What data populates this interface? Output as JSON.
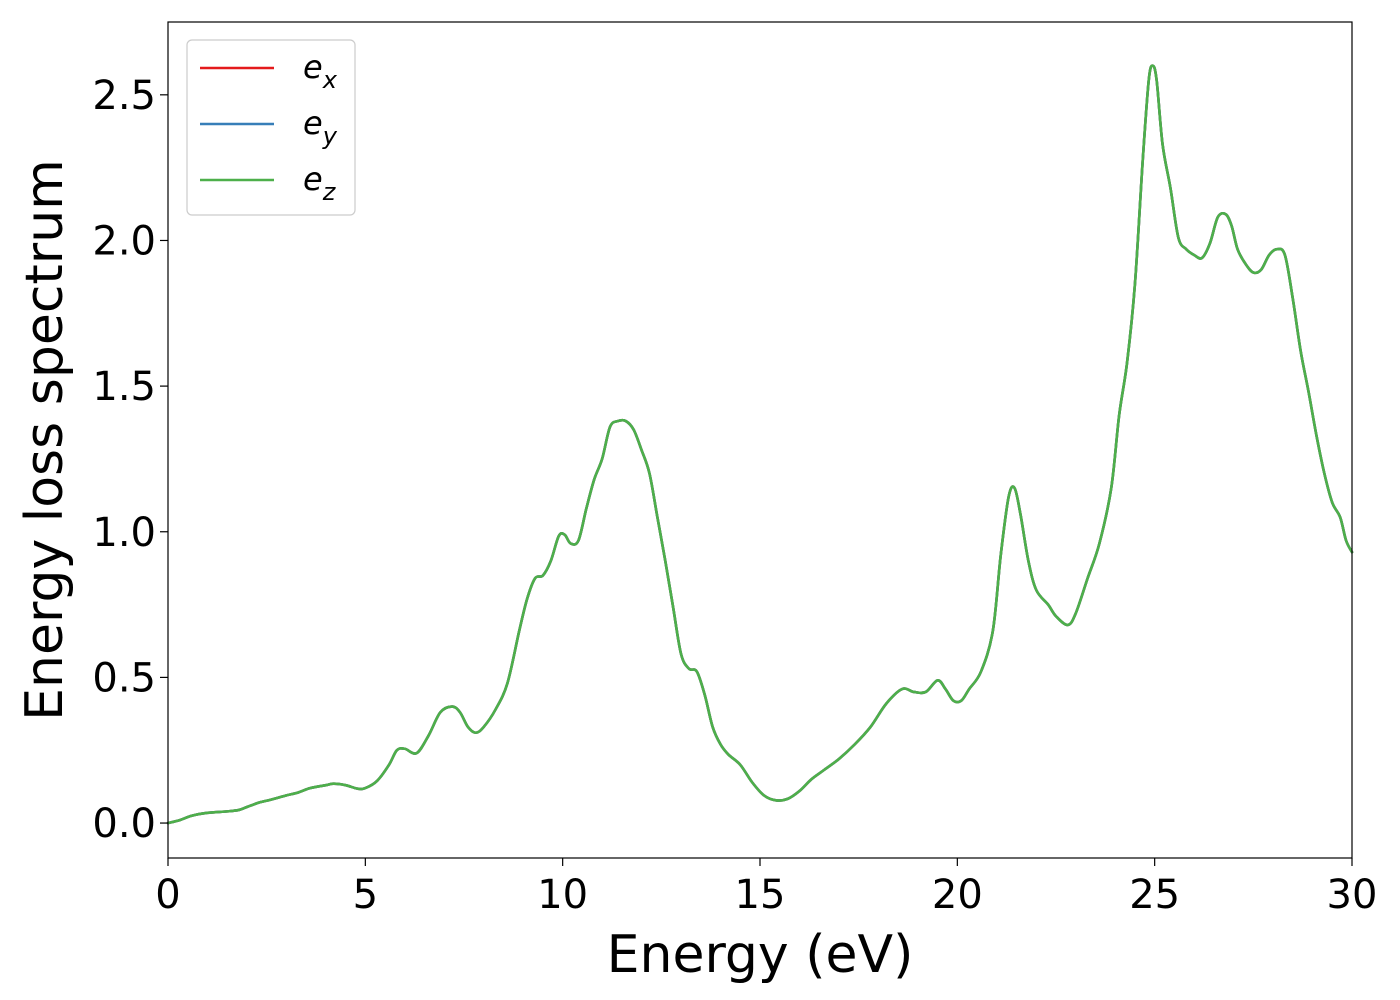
{
  "chart_data": {
    "type": "line",
    "title": "",
    "xlabel": "Energy (eV)",
    "ylabel": "Energy loss spectrum",
    "xlim": [
      0,
      30
    ],
    "ylim": [
      -0.12,
      2.75
    ],
    "xticks": [
      0,
      5,
      10,
      15,
      20,
      25,
      30
    ],
    "xtick_labels": [
      "0",
      "5",
      "10",
      "15",
      "20",
      "25",
      "30"
    ],
    "yticks": [
      0.0,
      0.5,
      1.0,
      1.5,
      2.0,
      2.5
    ],
    "ytick_labels": [
      "0.0",
      "0.5",
      "1.0",
      "1.5",
      "2.0",
      "2.5"
    ],
    "grid": false,
    "legend_position": "top-left",
    "x": [
      0,
      0.3,
      0.6,
      1.0,
      1.5,
      1.8,
      2.0,
      2.3,
      2.6,
      3.0,
      3.3,
      3.6,
      4.0,
      4.2,
      4.5,
      4.8,
      5.0,
      5.3,
      5.6,
      5.8,
      6.0,
      6.3,
      6.6,
      6.9,
      7.2,
      7.4,
      7.6,
      7.8,
      8.0,
      8.3,
      8.6,
      8.9,
      9.1,
      9.3,
      9.5,
      9.7,
      9.9,
      10.05,
      10.2,
      10.4,
      10.6,
      10.8,
      11.0,
      11.2,
      11.4,
      11.6,
      11.8,
      12.0,
      12.2,
      12.4,
      12.6,
      12.8,
      13.0,
      13.2,
      13.4,
      13.6,
      13.8,
      14.0,
      14.2,
      14.5,
      14.8,
      15.1,
      15.4,
      15.7,
      16.0,
      16.3,
      16.6,
      17.0,
      17.4,
      17.8,
      18.2,
      18.6,
      18.9,
      19.2,
      19.5,
      19.7,
      19.9,
      20.1,
      20.3,
      20.6,
      20.9,
      21.1,
      21.3,
      21.45,
      21.6,
      21.8,
      22.0,
      22.3,
      22.5,
      22.8,
      23.0,
      23.3,
      23.6,
      23.9,
      24.1,
      24.3,
      24.5,
      24.7,
      24.85,
      24.95,
      25.05,
      25.2,
      25.4,
      25.6,
      25.8,
      26.0,
      26.2,
      26.4,
      26.6,
      26.8,
      26.95,
      27.1,
      27.3,
      27.5,
      27.7,
      27.9,
      28.1,
      28.3,
      28.5,
      28.7,
      28.9,
      29.1,
      29.3,
      29.5,
      29.7,
      29.85,
      30.0
    ],
    "series": [
      {
        "name": "e_x",
        "label_base": "e",
        "label_sub": "x",
        "color": "#e41a1c",
        "values": [
          0.0,
          0.01,
          0.025,
          0.035,
          0.04,
          0.045,
          0.055,
          0.07,
          0.08,
          0.095,
          0.105,
          0.12,
          0.13,
          0.135,
          0.13,
          0.118,
          0.12,
          0.145,
          0.2,
          0.25,
          0.255,
          0.24,
          0.3,
          0.38,
          0.4,
          0.38,
          0.33,
          0.31,
          0.33,
          0.39,
          0.48,
          0.66,
          0.77,
          0.84,
          0.85,
          0.9,
          0.985,
          0.99,
          0.96,
          0.97,
          1.08,
          1.18,
          1.25,
          1.36,
          1.38,
          1.38,
          1.35,
          1.28,
          1.2,
          1.05,
          0.9,
          0.74,
          0.58,
          0.53,
          0.52,
          0.44,
          0.33,
          0.27,
          0.235,
          0.2,
          0.14,
          0.095,
          0.078,
          0.083,
          0.11,
          0.15,
          0.18,
          0.22,
          0.27,
          0.33,
          0.41,
          0.46,
          0.45,
          0.45,
          0.49,
          0.46,
          0.42,
          0.42,
          0.46,
          0.52,
          0.66,
          0.92,
          1.12,
          1.15,
          1.06,
          0.9,
          0.8,
          0.75,
          0.71,
          0.68,
          0.72,
          0.84,
          0.96,
          1.15,
          1.4,
          1.58,
          1.85,
          2.28,
          2.55,
          2.6,
          2.55,
          2.33,
          2.18,
          2.01,
          1.97,
          1.95,
          1.94,
          1.99,
          2.08,
          2.09,
          2.05,
          1.97,
          1.92,
          1.89,
          1.9,
          1.95,
          1.97,
          1.95,
          1.8,
          1.62,
          1.48,
          1.33,
          1.2,
          1.1,
          1.05,
          0.97,
          0.93
        ]
      },
      {
        "name": "e_y",
        "label_base": "e",
        "label_sub": "y",
        "color": "#377eb8",
        "values": [
          0.0,
          0.01,
          0.025,
          0.035,
          0.04,
          0.045,
          0.055,
          0.07,
          0.08,
          0.095,
          0.105,
          0.12,
          0.13,
          0.135,
          0.13,
          0.118,
          0.12,
          0.145,
          0.2,
          0.25,
          0.255,
          0.24,
          0.3,
          0.38,
          0.4,
          0.38,
          0.33,
          0.31,
          0.33,
          0.39,
          0.48,
          0.66,
          0.77,
          0.84,
          0.85,
          0.9,
          0.985,
          0.99,
          0.96,
          0.97,
          1.08,
          1.18,
          1.25,
          1.36,
          1.38,
          1.38,
          1.35,
          1.28,
          1.2,
          1.05,
          0.9,
          0.74,
          0.58,
          0.53,
          0.52,
          0.44,
          0.33,
          0.27,
          0.235,
          0.2,
          0.14,
          0.095,
          0.078,
          0.083,
          0.11,
          0.15,
          0.18,
          0.22,
          0.27,
          0.33,
          0.41,
          0.46,
          0.45,
          0.45,
          0.49,
          0.46,
          0.42,
          0.42,
          0.46,
          0.52,
          0.66,
          0.92,
          1.12,
          1.15,
          1.06,
          0.9,
          0.8,
          0.75,
          0.71,
          0.68,
          0.72,
          0.84,
          0.96,
          1.15,
          1.4,
          1.58,
          1.85,
          2.28,
          2.55,
          2.6,
          2.55,
          2.33,
          2.18,
          2.01,
          1.97,
          1.95,
          1.94,
          1.99,
          2.08,
          2.09,
          2.05,
          1.97,
          1.92,
          1.89,
          1.9,
          1.95,
          1.97,
          1.95,
          1.8,
          1.62,
          1.48,
          1.33,
          1.2,
          1.1,
          1.05,
          0.97,
          0.93
        ]
      },
      {
        "name": "e_z",
        "label_base": "e",
        "label_sub": "z",
        "color": "#4daf4a",
        "values": [
          0.0,
          0.01,
          0.025,
          0.035,
          0.04,
          0.045,
          0.055,
          0.07,
          0.08,
          0.095,
          0.105,
          0.12,
          0.13,
          0.135,
          0.13,
          0.118,
          0.12,
          0.145,
          0.2,
          0.25,
          0.255,
          0.24,
          0.3,
          0.38,
          0.4,
          0.38,
          0.33,
          0.31,
          0.33,
          0.39,
          0.48,
          0.66,
          0.77,
          0.84,
          0.85,
          0.9,
          0.985,
          0.99,
          0.96,
          0.97,
          1.08,
          1.18,
          1.25,
          1.36,
          1.38,
          1.38,
          1.35,
          1.28,
          1.2,
          1.05,
          0.9,
          0.74,
          0.58,
          0.53,
          0.52,
          0.44,
          0.33,
          0.27,
          0.235,
          0.2,
          0.14,
          0.095,
          0.078,
          0.083,
          0.11,
          0.15,
          0.18,
          0.22,
          0.27,
          0.33,
          0.41,
          0.46,
          0.45,
          0.45,
          0.49,
          0.46,
          0.42,
          0.42,
          0.46,
          0.52,
          0.66,
          0.92,
          1.12,
          1.15,
          1.06,
          0.9,
          0.8,
          0.75,
          0.71,
          0.68,
          0.72,
          0.84,
          0.96,
          1.15,
          1.4,
          1.58,
          1.85,
          2.28,
          2.55,
          2.6,
          2.55,
          2.33,
          2.18,
          2.01,
          1.97,
          1.95,
          1.94,
          1.99,
          2.08,
          2.09,
          2.05,
          1.97,
          1.92,
          1.89,
          1.9,
          1.95,
          1.97,
          1.95,
          1.8,
          1.62,
          1.48,
          1.33,
          1.2,
          1.1,
          1.05,
          0.97,
          0.93
        ]
      }
    ]
  }
}
